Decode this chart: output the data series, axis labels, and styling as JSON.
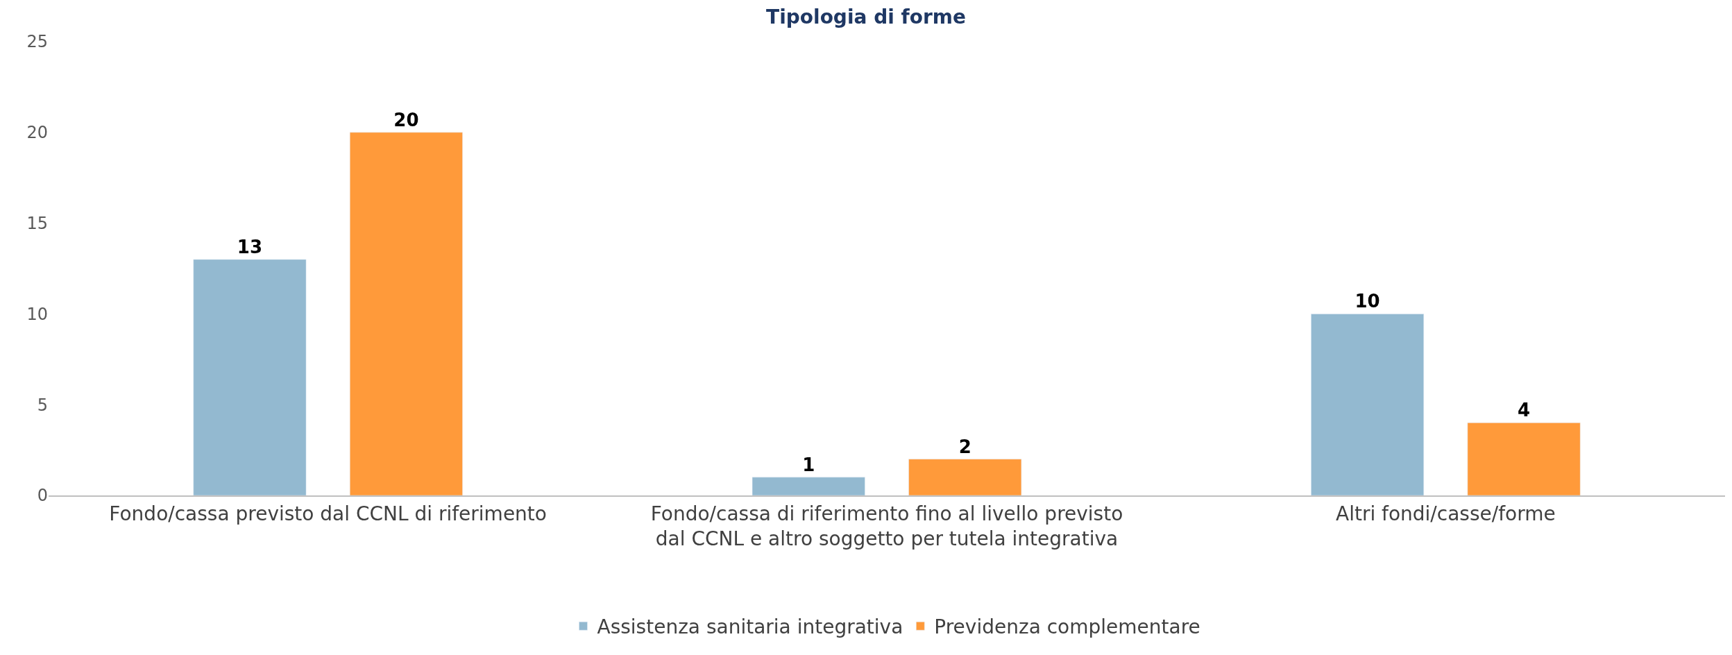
{
  "chart_data": {
    "type": "bar",
    "title": "Tipologia di forme",
    "categories": [
      "Fondo/cassa previsto dal CCNL di riferimento",
      "Fondo/cassa di riferimento fino al livello previsto dal CCNL e altro soggetto per tutela integrativa",
      "Altri fondi/casse/forme"
    ],
    "series": [
      {
        "name": "Assistenza sanitaria integrativa",
        "color": "#93b9d0",
        "values": [
          13,
          1,
          10
        ]
      },
      {
        "name": "Previdenza complementare",
        "color": "#ff9a3a",
        "values": [
          20,
          2,
          4
        ]
      }
    ],
    "ylim": [
      0,
      25
    ],
    "yticks": [
      0,
      5,
      10,
      15,
      20,
      25
    ],
    "legend": "bottom",
    "data_labels": true
  }
}
